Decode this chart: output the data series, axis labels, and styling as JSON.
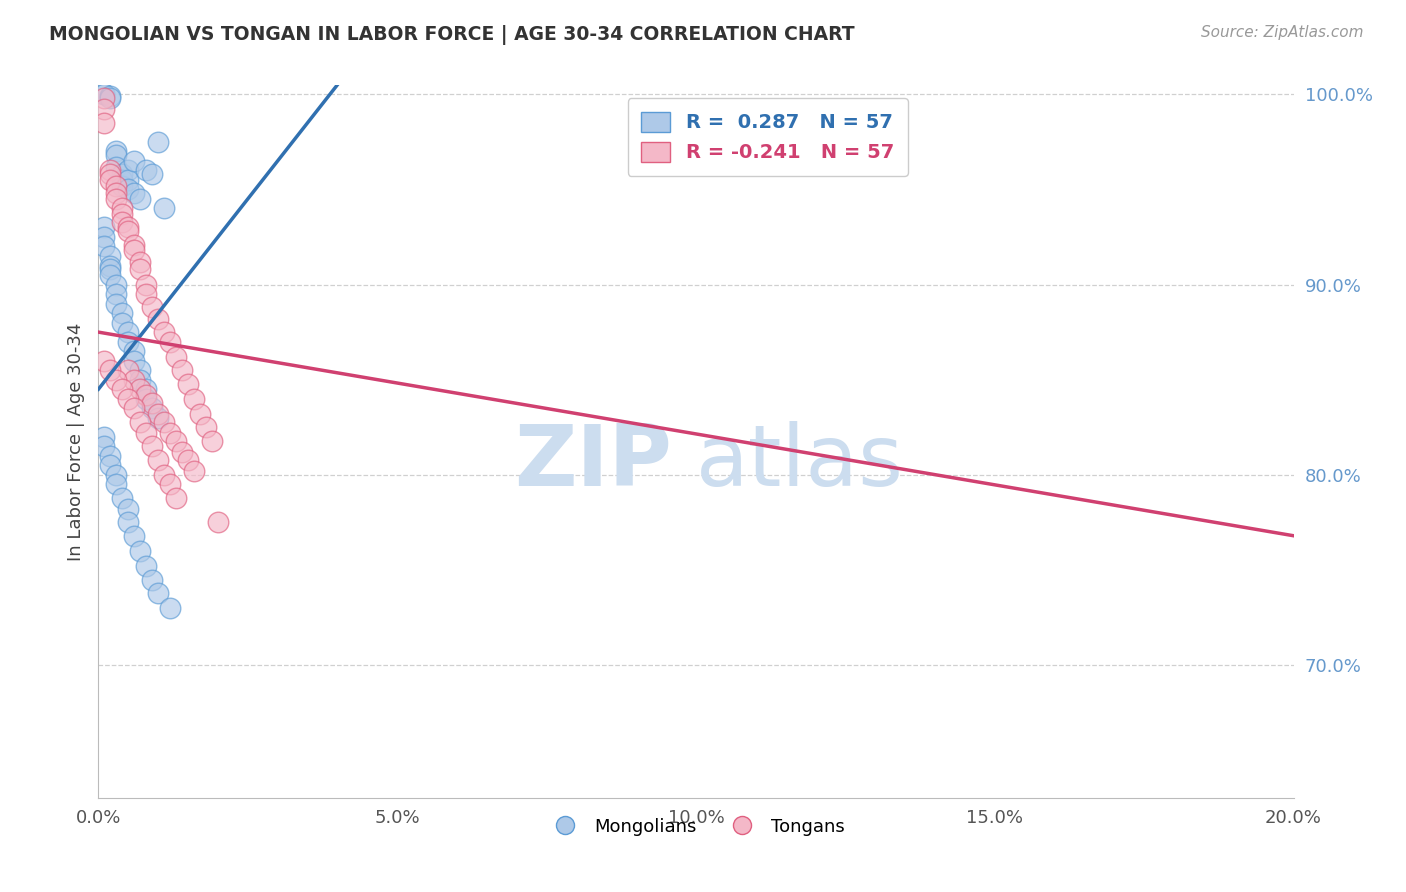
{
  "title": "MONGOLIAN VS TONGAN IN LABOR FORCE | AGE 30-34 CORRELATION CHART",
  "source_text": "Source: ZipAtlas.com",
  "ylabel": "In Labor Force | Age 30-34",
  "xlim": [
    0.0,
    0.2
  ],
  "ylim": [
    0.63,
    1.005
  ],
  "xticks": [
    0.0,
    0.05,
    0.1,
    0.15,
    0.2
  ],
  "xticklabels": [
    "0.0%",
    "5.0%",
    "10.0%",
    "15.0%",
    "20.0%"
  ],
  "yticks_right": [
    0.7,
    0.8,
    0.9,
    1.0
  ],
  "yticklabels_right": [
    "70.0%",
    "80.0%",
    "90.0%",
    "100.0%"
  ],
  "R_blue": 0.287,
  "N_blue": 57,
  "R_pink": -0.241,
  "N_pink": 57,
  "blue_color": "#aec9e8",
  "pink_color": "#f4b8c8",
  "blue_edge_color": "#5b9bd5",
  "pink_edge_color": "#e06080",
  "trend_blue_color": "#3070b0",
  "trend_pink_color": "#d04070",
  "grid_color": "#d0d0d0",
  "right_axis_color": "#6699cc",
  "watermark_color": "#ccddef",
  "background_color": "#ffffff",
  "mongolian_x": [
    0.001,
    0.001,
    0.002,
    0.002,
    0.003,
    0.003,
    0.003,
    0.004,
    0.004,
    0.004,
    0.005,
    0.005,
    0.005,
    0.006,
    0.006,
    0.007,
    0.008,
    0.009,
    0.01,
    0.011,
    0.001,
    0.001,
    0.001,
    0.002,
    0.002,
    0.002,
    0.002,
    0.003,
    0.003,
    0.003,
    0.004,
    0.004,
    0.005,
    0.005,
    0.006,
    0.006,
    0.007,
    0.007,
    0.008,
    0.008,
    0.009,
    0.01,
    0.001,
    0.001,
    0.002,
    0.002,
    0.003,
    0.003,
    0.004,
    0.005,
    0.005,
    0.006,
    0.007,
    0.008,
    0.009,
    0.01,
    0.012
  ],
  "mongolian_y": [
    1.0,
    1.0,
    0.999,
    0.998,
    0.97,
    0.968,
    0.962,
    0.958,
    0.955,
    0.952,
    0.96,
    0.955,
    0.95,
    0.965,
    0.948,
    0.945,
    0.96,
    0.958,
    0.975,
    0.94,
    0.93,
    0.925,
    0.92,
    0.915,
    0.91,
    0.908,
    0.905,
    0.9,
    0.895,
    0.89,
    0.885,
    0.88,
    0.875,
    0.87,
    0.865,
    0.86,
    0.855,
    0.85,
    0.845,
    0.84,
    0.835,
    0.83,
    0.82,
    0.815,
    0.81,
    0.805,
    0.8,
    0.795,
    0.788,
    0.782,
    0.775,
    0.768,
    0.76,
    0.752,
    0.745,
    0.738,
    0.73
  ],
  "tongan_x": [
    0.001,
    0.001,
    0.001,
    0.002,
    0.002,
    0.002,
    0.003,
    0.003,
    0.003,
    0.004,
    0.004,
    0.004,
    0.005,
    0.005,
    0.006,
    0.006,
    0.007,
    0.007,
    0.008,
    0.008,
    0.009,
    0.01,
    0.011,
    0.012,
    0.013,
    0.014,
    0.015,
    0.016,
    0.017,
    0.018,
    0.019,
    0.02,
    0.005,
    0.006,
    0.007,
    0.008,
    0.009,
    0.01,
    0.011,
    0.012,
    0.013,
    0.014,
    0.015,
    0.016,
    0.001,
    0.002,
    0.003,
    0.004,
    0.005,
    0.006,
    0.007,
    0.008,
    0.009,
    0.01,
    0.011,
    0.012,
    0.013
  ],
  "tongan_y": [
    0.998,
    0.992,
    0.985,
    0.96,
    0.958,
    0.955,
    0.952,
    0.948,
    0.945,
    0.94,
    0.937,
    0.933,
    0.93,
    0.928,
    0.921,
    0.918,
    0.912,
    0.908,
    0.9,
    0.895,
    0.888,
    0.882,
    0.875,
    0.87,
    0.862,
    0.855,
    0.848,
    0.84,
    0.832,
    0.825,
    0.818,
    0.775,
    0.855,
    0.85,
    0.845,
    0.842,
    0.838,
    0.832,
    0.828,
    0.822,
    0.818,
    0.812,
    0.808,
    0.802,
    0.86,
    0.855,
    0.85,
    0.845,
    0.84,
    0.835,
    0.828,
    0.822,
    0.815,
    0.808,
    0.8,
    0.795,
    0.788
  ]
}
